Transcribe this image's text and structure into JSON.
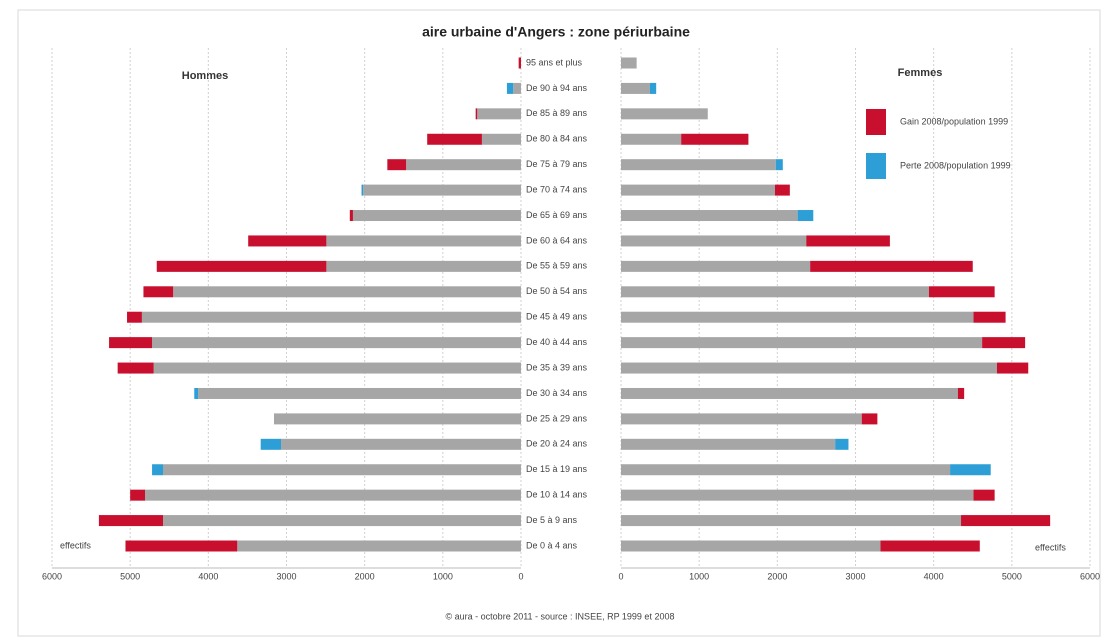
{
  "title": "aire urbaine d'Angers : zone périurbaine",
  "source": "© aura - octobre 2011 - source : INSEE, RP 1999 et 2008",
  "chart_data": [
    {
      "type": "bar",
      "orientation": "horizontal",
      "title": "Hommes",
      "xlabel": "effectifs",
      "categories": [
        "95 ans et plus",
        "De 90 à 94 ans",
        "De 85 à 89 ans",
        "De 80 à 84 ans",
        "De 75 à 79 ans",
        "De 70 à 74 ans",
        "De 65 à 69 ans",
        "De 60 à 64 ans",
        "De 55 à 59 ans",
        "De 50 à 54 ans",
        "De 45 à 49 ans",
        "De 40 à 44 ans",
        "De 35 à 39 ans",
        "De 30 à 34 ans",
        "De 25 à 29 ans",
        "De 20 à 24 ans",
        "De 15 à 19 ans",
        "De 10 à 14 ans",
        "De 5 à 9 ans",
        "De 0 à 4 ans"
      ],
      "xlim": [
        6000,
        0
      ],
      "xticks": [
        6000,
        5000,
        4000,
        3000,
        2000,
        1000,
        0
      ],
      "grid": true,
      "series": [
        {
          "color": "#a6a6a6",
          "values": [
            0,
            100,
            560,
            500,
            1470,
            2020,
            2150,
            2490,
            2490,
            4450,
            4850,
            4720,
            4700,
            4130,
            3160,
            3070,
            4580,
            4810,
            4580,
            3630
          ]
        },
        {
          "color": "#c8102e",
          "values": [
            30,
            null,
            20,
            700,
            240,
            null,
            40,
            1000,
            2170,
            380,
            190,
            550,
            460,
            null,
            null,
            null,
            null,
            190,
            820,
            1430
          ]
        },
        {
          "color": "#2e9fd6",
          "values": [
            null,
            80,
            null,
            null,
            null,
            20,
            null,
            null,
            null,
            null,
            null,
            null,
            null,
            50,
            null,
            260,
            140,
            null,
            null,
            null
          ]
        }
      ]
    },
    {
      "type": "bar",
      "orientation": "horizontal",
      "title": "Femmes",
      "xlabel": "effectifs",
      "xlim": [
        0,
        6000
      ],
      "xticks": [
        0,
        1000,
        2000,
        3000,
        4000,
        5000,
        6000
      ],
      "grid": true,
      "legend": "upper-right",
      "series": [
        {
          "color": "#a6a6a6",
          "values": [
            200,
            370,
            1110,
            770,
            1980,
            1970,
            2260,
            2370,
            2420,
            3940,
            4510,
            4620,
            4810,
            4310,
            3080,
            2740,
            4210,
            4510,
            4350,
            3320
          ]
        },
        {
          "name": "Gain 2008/population 1999",
          "color": "#c8102e",
          "values": [
            null,
            null,
            null,
            860,
            null,
            190,
            null,
            1070,
            2080,
            840,
            410,
            550,
            400,
            80,
            200,
            null,
            null,
            270,
            1140,
            1270
          ]
        },
        {
          "name": "Perte 2008/population 1999",
          "color": "#2e9fd6",
          "values": [
            null,
            80,
            null,
            null,
            90,
            null,
            200,
            null,
            null,
            null,
            null,
            null,
            null,
            null,
            null,
            170,
            520,
            null,
            null,
            null
          ]
        }
      ]
    }
  ]
}
